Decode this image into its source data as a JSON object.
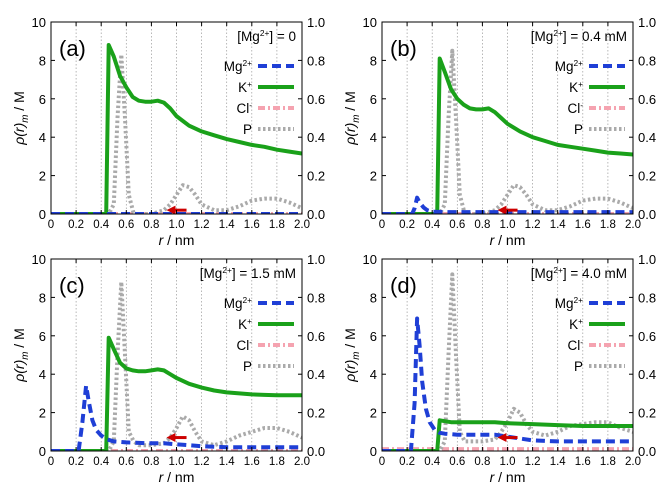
{
  "colors": {
    "mg": "#1f3fd6",
    "k": "#1aa11a",
    "cl": "#f5a3b0",
    "p": "#aaaaaa",
    "arrow": "#cc0000",
    "grid": "#9a9a9a"
  },
  "legend_labels": {
    "mg_base": "Mg",
    "mg_sup": "2+",
    "k_base": "K",
    "k_sup": "+",
    "cl_base": "Cl",
    "cl_sup": "-",
    "p_base": "P"
  },
  "axis_labels": {
    "x_r": "r",
    "x_unit": " / nm",
    "y_rho": "ρ(r)",
    "y_sub": "m",
    "y_unit": " / M"
  },
  "chart_data": [
    {
      "type": "line",
      "panel": "(a)",
      "conc_prefix": "[Mg",
      "conc_sup": "2+",
      "conc_suffix": "] = 0",
      "xlim": [
        0,
        2.0
      ],
      "ylim_left": [
        0,
        10
      ],
      "ylim_right": [
        0,
        1.0
      ],
      "grid": "vertical",
      "legend": "top-right",
      "x_ticks": [
        "0",
        "0.2",
        "0.4",
        "0.6",
        "0.8",
        "1.0",
        "1.2",
        "1.4",
        "1.6",
        "1.8",
        "2.0"
      ],
      "y_ticks_left": [
        "0",
        "2",
        "4",
        "6",
        "8",
        "10"
      ],
      "y_ticks_right": [
        "0.0",
        "0.2",
        "0.4",
        "0.6",
        "0.8",
        "1.0"
      ],
      "series": [
        {
          "name": "Mg2+",
          "axis": "left",
          "x": [
            0,
            2.0
          ],
          "y": [
            0,
            0
          ]
        },
        {
          "name": "K+",
          "axis": "left",
          "x": [
            0,
            0.44,
            0.44,
            0.46,
            0.5,
            0.55,
            0.6,
            0.65,
            0.7,
            0.75,
            0.8,
            0.85,
            0.9,
            0.95,
            1.0,
            1.1,
            1.2,
            1.3,
            1.4,
            1.5,
            1.6,
            1.7,
            1.8,
            1.9,
            2.0
          ],
          "y": [
            0,
            0,
            0,
            8.8,
            8.2,
            7.2,
            6.6,
            6.1,
            5.9,
            5.85,
            5.85,
            5.9,
            5.8,
            5.5,
            5.1,
            4.6,
            4.3,
            4.1,
            3.9,
            3.75,
            3.6,
            3.5,
            3.35,
            3.25,
            3.15
          ]
        },
        {
          "name": "Cl-",
          "axis": "left",
          "x": [
            0,
            2.0
          ],
          "y": [
            0,
            0
          ]
        },
        {
          "name": "P",
          "axis": "right",
          "x": [
            0,
            0.46,
            0.5,
            0.53,
            0.56,
            0.59,
            0.62,
            0.66,
            0.7,
            0.8,
            0.9,
            0.95,
            1.0,
            1.05,
            1.1,
            1.15,
            1.2,
            1.3,
            1.4,
            1.5,
            1.6,
            1.7,
            1.8,
            1.9,
            2.0
          ],
          "y": [
            0,
            0,
            0.05,
            0.5,
            0.83,
            0.5,
            0.1,
            0.0,
            0.0,
            0.0,
            0.02,
            0.05,
            0.1,
            0.15,
            0.14,
            0.1,
            0.05,
            0.02,
            0.02,
            0.04,
            0.07,
            0.08,
            0.08,
            0.06,
            0.03
          ]
        }
      ],
      "arrow": {
        "x_from": 1.08,
        "x_to": 0.92,
        "y": 0.2
      }
    },
    {
      "type": "line",
      "panel": "(b)",
      "conc_prefix": "[Mg",
      "conc_sup": "2+",
      "conc_suffix": "] = 0.4 mM",
      "xlim": [
        0,
        2.0
      ],
      "ylim_left": [
        0,
        10
      ],
      "ylim_right": [
        0,
        1.0
      ],
      "grid": "vertical",
      "legend": "top-right",
      "x_ticks": [
        "0",
        "0.2",
        "0.4",
        "0.6",
        "0.8",
        "1.0",
        "1.2",
        "1.4",
        "1.6",
        "1.8",
        "2.0"
      ],
      "y_ticks_left": [
        "0",
        "2",
        "4",
        "6",
        "8",
        "10"
      ],
      "y_ticks_right": [
        "0.0",
        "0.2",
        "0.4",
        "0.6",
        "0.8",
        "1.0"
      ],
      "series": [
        {
          "name": "Mg2+",
          "axis": "left",
          "x": [
            0,
            0.24,
            0.26,
            0.28,
            0.3,
            0.33,
            0.36,
            0.4,
            0.5,
            0.7,
            1.0,
            1.5,
            2.0
          ],
          "y": [
            0,
            0,
            0.3,
            0.85,
            0.6,
            0.35,
            0.2,
            0.12,
            0.1,
            0.1,
            0.1,
            0.1,
            0.1
          ]
        },
        {
          "name": "K+",
          "axis": "left",
          "x": [
            0,
            0.44,
            0.44,
            0.46,
            0.5,
            0.55,
            0.6,
            0.65,
            0.7,
            0.75,
            0.8,
            0.85,
            0.9,
            0.95,
            1.0,
            1.1,
            1.2,
            1.3,
            1.4,
            1.5,
            1.6,
            1.7,
            1.8,
            1.9,
            2.0
          ],
          "y": [
            0,
            0,
            0,
            8.1,
            7.4,
            6.5,
            6.0,
            5.7,
            5.5,
            5.45,
            5.45,
            5.5,
            5.3,
            5.0,
            4.7,
            4.3,
            4.0,
            3.8,
            3.6,
            3.5,
            3.4,
            3.3,
            3.2,
            3.15,
            3.1
          ]
        },
        {
          "name": "Cl-",
          "axis": "left",
          "x": [
            0,
            2.0
          ],
          "y": [
            0,
            0
          ]
        },
        {
          "name": "P",
          "axis": "right",
          "x": [
            0,
            0.46,
            0.5,
            0.53,
            0.56,
            0.59,
            0.62,
            0.66,
            0.7,
            0.8,
            0.9,
            0.95,
            1.0,
            1.05,
            1.1,
            1.15,
            1.2,
            1.3,
            1.4,
            1.5,
            1.6,
            1.7,
            1.8,
            1.9,
            2.0
          ],
          "y": [
            0,
            0,
            0.05,
            0.5,
            0.85,
            0.5,
            0.1,
            0.0,
            0.0,
            0.0,
            0.02,
            0.05,
            0.1,
            0.15,
            0.14,
            0.1,
            0.05,
            0.02,
            0.02,
            0.04,
            0.07,
            0.08,
            0.08,
            0.06,
            0.03
          ]
        }
      ],
      "arrow": {
        "x_from": 1.08,
        "x_to": 0.92,
        "y": 0.2
      }
    },
    {
      "type": "line",
      "panel": "(c)",
      "conc_prefix": "[Mg",
      "conc_sup": "2+",
      "conc_suffix": "] = 1.5 mM",
      "xlim": [
        0,
        2.0
      ],
      "ylim_left": [
        0,
        10
      ],
      "ylim_right": [
        0,
        1.0
      ],
      "grid": "vertical",
      "legend": "top-right",
      "x_ticks": [
        "0",
        "0.2",
        "0.4",
        "0.6",
        "0.8",
        "1.0",
        "1.2",
        "1.4",
        "1.6",
        "1.8",
        "2.0"
      ],
      "y_ticks_left": [
        "0",
        "2",
        "4",
        "6",
        "8",
        "10"
      ],
      "y_ticks_right": [
        "0.0",
        "0.2",
        "0.4",
        "0.6",
        "0.8",
        "1.0"
      ],
      "series": [
        {
          "name": "Mg2+",
          "axis": "left",
          "x": [
            0,
            0.22,
            0.25,
            0.28,
            0.3,
            0.33,
            0.36,
            0.4,
            0.45,
            0.5,
            0.6,
            0.7,
            0.8,
            0.9,
            1.0,
            1.1,
            1.2,
            1.4,
            1.6,
            1.8,
            2.0
          ],
          "y": [
            0,
            0,
            1.5,
            3.4,
            2.6,
            1.6,
            1.1,
            0.8,
            0.6,
            0.5,
            0.45,
            0.42,
            0.4,
            0.4,
            0.35,
            0.3,
            0.25,
            0.2,
            0.2,
            0.2,
            0.2
          ]
        },
        {
          "name": "K+",
          "axis": "left",
          "x": [
            0,
            0.44,
            0.44,
            0.46,
            0.5,
            0.55,
            0.6,
            0.65,
            0.7,
            0.75,
            0.8,
            0.85,
            0.9,
            0.95,
            1.0,
            1.1,
            1.2,
            1.3,
            1.4,
            1.5,
            1.6,
            1.7,
            1.8,
            1.9,
            2.0
          ],
          "y": [
            0,
            0,
            0,
            5.9,
            5.3,
            4.6,
            4.3,
            4.2,
            4.15,
            4.15,
            4.2,
            4.25,
            4.2,
            4.0,
            3.8,
            3.5,
            3.3,
            3.15,
            3.05,
            3.0,
            2.95,
            2.92,
            2.9,
            2.9,
            2.9
          ]
        },
        {
          "name": "Cl-",
          "axis": "left",
          "x": [
            0,
            2.0
          ],
          "y": [
            0,
            0
          ]
        },
        {
          "name": "P",
          "axis": "right",
          "x": [
            0,
            0.46,
            0.5,
            0.53,
            0.56,
            0.59,
            0.62,
            0.66,
            0.7,
            0.8,
            0.9,
            0.95,
            1.0,
            1.05,
            1.1,
            1.15,
            1.2,
            1.3,
            1.4,
            1.5,
            1.6,
            1.7,
            1.8,
            1.9,
            2.0
          ],
          "y": [
            0,
            0,
            0.05,
            0.5,
            0.88,
            0.5,
            0.1,
            0.05,
            0.03,
            0.03,
            0.04,
            0.07,
            0.12,
            0.18,
            0.16,
            0.1,
            0.05,
            0.03,
            0.05,
            0.08,
            0.1,
            0.12,
            0.12,
            0.1,
            0.07
          ]
        }
      ],
      "arrow": {
        "x_from": 1.08,
        "x_to": 0.92,
        "y": 0.7
      }
    },
    {
      "type": "line",
      "panel": "(d)",
      "conc_prefix": "[Mg",
      "conc_sup": "2+",
      "conc_suffix": "] = 4.0 mM",
      "xlim": [
        0,
        2.0
      ],
      "ylim_left": [
        0,
        10
      ],
      "ylim_right": [
        0,
        1.0
      ],
      "grid": "vertical",
      "legend": "top-right",
      "x_ticks": [
        "0",
        "0.2",
        "0.4",
        "0.6",
        "0.8",
        "1.0",
        "1.2",
        "1.4",
        "1.6",
        "1.8",
        "2.0"
      ],
      "y_ticks_left": [
        "0",
        "2",
        "4",
        "6",
        "8",
        "10"
      ],
      "y_ticks_right": [
        "0.0",
        "0.2",
        "0.4",
        "0.6",
        "0.8",
        "1.0"
      ],
      "series": [
        {
          "name": "Mg2+",
          "axis": "left",
          "x": [
            0,
            0.23,
            0.26,
            0.28,
            0.3,
            0.32,
            0.35,
            0.38,
            0.42,
            0.46,
            0.5,
            0.6,
            0.7,
            0.8,
            0.9,
            1.0,
            1.1,
            1.2,
            1.4,
            1.6,
            1.8,
            2.0
          ],
          "y": [
            0,
            0,
            2.5,
            6.9,
            5.5,
            3.6,
            2.2,
            1.5,
            1.1,
            0.95,
            0.9,
            0.85,
            0.85,
            0.85,
            0.85,
            0.75,
            0.65,
            0.55,
            0.5,
            0.5,
            0.5,
            0.5
          ]
        },
        {
          "name": "K+",
          "axis": "left",
          "x": [
            0,
            0.44,
            0.44,
            0.46,
            0.5,
            0.55,
            0.6,
            0.7,
            0.8,
            0.9,
            1.0,
            1.2,
            1.4,
            1.6,
            1.8,
            2.0
          ],
          "y": [
            0,
            0,
            0,
            1.6,
            1.55,
            1.5,
            1.5,
            1.5,
            1.5,
            1.5,
            1.45,
            1.4,
            1.35,
            1.3,
            1.3,
            1.3
          ]
        },
        {
          "name": "Cl-",
          "axis": "left",
          "x": [
            0,
            2.0
          ],
          "y": [
            0.1,
            0.1
          ]
        },
        {
          "name": "P",
          "axis": "right",
          "x": [
            0,
            0.46,
            0.5,
            0.53,
            0.56,
            0.59,
            0.62,
            0.66,
            0.7,
            0.8,
            0.9,
            0.95,
            1.0,
            1.05,
            1.1,
            1.15,
            1.2,
            1.3,
            1.4,
            1.5,
            1.6,
            1.7,
            1.8,
            1.9,
            2.0
          ],
          "y": [
            0,
            0,
            0.05,
            0.5,
            0.92,
            0.5,
            0.1,
            0.05,
            0.05,
            0.05,
            0.06,
            0.1,
            0.15,
            0.22,
            0.2,
            0.14,
            0.1,
            0.08,
            0.1,
            0.13,
            0.14,
            0.15,
            0.15,
            0.12,
            0.1
          ]
        }
      ],
      "arrow": {
        "x_from": 1.08,
        "x_to": 0.92,
        "y": 0.7
      }
    }
  ]
}
